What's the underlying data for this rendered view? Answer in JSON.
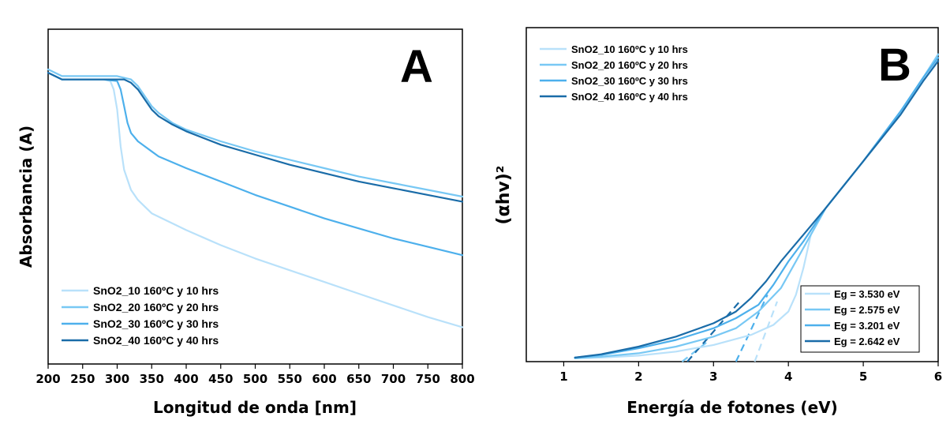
{
  "colors": {
    "s10": "#b9e1fa",
    "s20": "#78c8f4",
    "s30": "#4db0ec",
    "s40": "#1a6ca8"
  },
  "chart_data": [
    {
      "type": "line",
      "panel_letter": "A",
      "xlabel": "Longitud de onda [nm]",
      "ylabel": "Absorbancia (A)",
      "xlim": [
        200,
        800
      ],
      "xticks": [
        200,
        250,
        300,
        350,
        400,
        450,
        500,
        550,
        600,
        650,
        700,
        750,
        800
      ],
      "ylim": [
        0,
        1
      ],
      "yticks_shown": false,
      "legend_position": "bottom-left",
      "series": [
        {
          "name": "SnO2_10 160ºC y 10 hrs",
          "color": "s10",
          "x": [
            200,
            220,
            250,
            280,
            290,
            295,
            300,
            305,
            310,
            320,
            330,
            340,
            350,
            400,
            450,
            500,
            550,
            600,
            650,
            700,
            750,
            800
          ],
          "y": [
            0.87,
            0.85,
            0.85,
            0.85,
            0.845,
            0.82,
            0.76,
            0.65,
            0.58,
            0.52,
            0.49,
            0.47,
            0.45,
            0.4,
            0.355,
            0.315,
            0.28,
            0.245,
            0.21,
            0.175,
            0.14,
            0.11
          ]
        },
        {
          "name": "SnO2_20 160ºC y 20 hrs",
          "color": "s20",
          "x": [
            200,
            220,
            250,
            280,
            300,
            320,
            330,
            340,
            350,
            360,
            370,
            380,
            400,
            450,
            500,
            550,
            600,
            650,
            700,
            750,
            800
          ],
          "y": [
            0.88,
            0.86,
            0.86,
            0.86,
            0.86,
            0.85,
            0.83,
            0.8,
            0.77,
            0.75,
            0.735,
            0.72,
            0.7,
            0.665,
            0.635,
            0.61,
            0.585,
            0.56,
            0.54,
            0.52,
            0.5
          ]
        },
        {
          "name": "SnO2_30 160ºC y 30 hrs",
          "color": "s30",
          "x": [
            200,
            220,
            250,
            280,
            300,
            305,
            310,
            315,
            320,
            330,
            340,
            350,
            360,
            400,
            450,
            500,
            550,
            600,
            650,
            700,
            750,
            800
          ],
          "y": [
            0.87,
            0.85,
            0.85,
            0.85,
            0.845,
            0.82,
            0.77,
            0.72,
            0.69,
            0.665,
            0.65,
            0.635,
            0.62,
            0.585,
            0.545,
            0.505,
            0.47,
            0.435,
            0.405,
            0.375,
            0.35,
            0.325
          ]
        },
        {
          "name": "SnO2_40 160ºC y 40 hrs",
          "color": "s40",
          "x": [
            200,
            220,
            250,
            280,
            300,
            310,
            320,
            330,
            340,
            350,
            360,
            380,
            400,
            450,
            500,
            550,
            600,
            650,
            700,
            750,
            800
          ],
          "y": [
            0.87,
            0.85,
            0.85,
            0.85,
            0.85,
            0.85,
            0.84,
            0.82,
            0.79,
            0.76,
            0.74,
            0.715,
            0.695,
            0.655,
            0.625,
            0.595,
            0.57,
            0.545,
            0.525,
            0.505,
            0.485
          ]
        }
      ]
    },
    {
      "type": "line",
      "panel_letter": "B",
      "xlabel": "Energía de fotones (eV)",
      "ylabel": "(αhv)²",
      "xlim": [
        0.5,
        6
      ],
      "xticks": [
        1,
        2,
        3,
        4,
        5,
        6
      ],
      "ylim": [
        0,
        1
      ],
      "yticks_shown": false,
      "legend_position": "top-left",
      "band_gap_legend_position": "bottom-right",
      "series": [
        {
          "name": "SnO2_10 160ºC y 10 hrs",
          "color": "s10",
          "x": [
            1.15,
            1.5,
            2.0,
            2.5,
            3.0,
            3.5,
            3.8,
            4.0,
            4.1,
            4.2,
            4.3,
            4.5,
            5.0,
            5.5,
            5.8,
            6.0
          ],
          "y": [
            0.01,
            0.012,
            0.018,
            0.03,
            0.05,
            0.08,
            0.11,
            0.15,
            0.2,
            0.28,
            0.38,
            0.46,
            0.6,
            0.75,
            0.85,
            0.92
          ]
        },
        {
          "name": "SnO2_20 160ºC y 20 hrs",
          "color": "s20",
          "x": [
            1.15,
            1.5,
            2.0,
            2.5,
            3.0,
            3.3,
            3.6,
            3.9,
            4.1,
            4.25,
            4.5,
            5.0,
            5.5,
            5.8,
            6.0
          ],
          "y": [
            0.01,
            0.015,
            0.025,
            0.045,
            0.075,
            0.1,
            0.15,
            0.22,
            0.3,
            0.36,
            0.46,
            0.6,
            0.75,
            0.85,
            0.92
          ]
        },
        {
          "name": "SnO2_30 160ºC y 30 hrs",
          "color": "s30",
          "x": [
            1.15,
            1.5,
            2.0,
            2.5,
            3.0,
            3.3,
            3.6,
            3.8,
            4.0,
            4.2,
            4.5,
            5.0,
            5.5,
            5.8,
            6.0
          ],
          "y": [
            0.012,
            0.02,
            0.04,
            0.065,
            0.1,
            0.13,
            0.17,
            0.23,
            0.3,
            0.36,
            0.46,
            0.6,
            0.75,
            0.85,
            0.91
          ]
        },
        {
          "name": "SnO2_40 160ºC y 40 hrs",
          "color": "s40",
          "x": [
            1.15,
            1.5,
            2.0,
            2.5,
            3.0,
            3.3,
            3.5,
            3.7,
            3.9,
            4.05,
            4.2,
            4.5,
            5.0,
            5.5,
            5.8,
            6.0
          ],
          "y": [
            0.012,
            0.022,
            0.045,
            0.075,
            0.115,
            0.15,
            0.19,
            0.24,
            0.3,
            0.34,
            0.38,
            0.46,
            0.6,
            0.74,
            0.84,
            0.9
          ]
        }
      ],
      "fit_lines": [
        {
          "color": "s10",
          "x": [
            3.55,
            3.85
          ],
          "y": [
            0.0,
            0.18
          ]
        },
        {
          "color": "s20",
          "x": [
            2.58,
            2.95
          ],
          "y": [
            0.0,
            0.065
          ]
        },
        {
          "color": "s30",
          "x": [
            3.3,
            3.72
          ],
          "y": [
            0.0,
            0.2
          ]
        },
        {
          "color": "s40",
          "x": [
            2.65,
            3.35
          ],
          "y": [
            0.0,
            0.18
          ]
        }
      ],
      "band_gaps": [
        {
          "label": "Eg = 3.530 eV",
          "color": "s10"
        },
        {
          "label": "Eg = 2.575 eV",
          "color": "s20"
        },
        {
          "label": "Eg = 3.201 eV",
          "color": "s30"
        },
        {
          "label": "Eg = 2.642 eV",
          "color": "s40"
        }
      ]
    }
  ]
}
